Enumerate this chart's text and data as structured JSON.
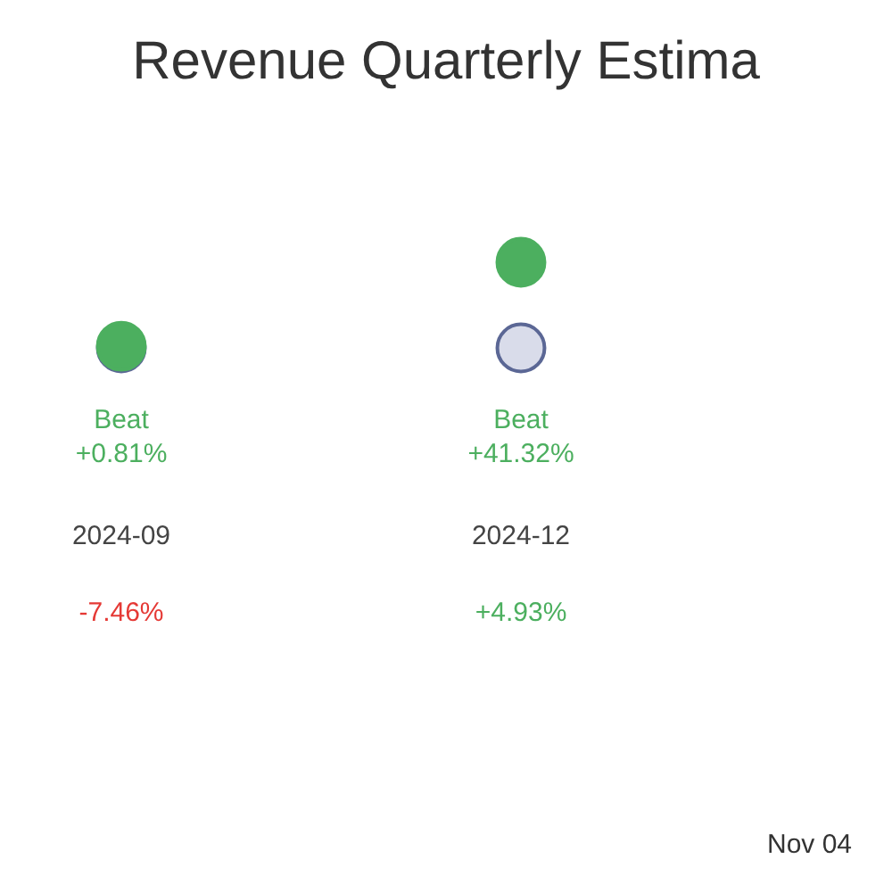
{
  "chart_data": {
    "type": "other",
    "title": "Revenue Quarterly Estima",
    "categories": [
      "2024-09",
      "2024-12"
    ],
    "series": [
      {
        "color": "#4caf5f",
        "values": [
          0.81,
          41.32
        ],
        "value_labels": [
          "Beat\n+0.81%",
          "Beat\n+41.32%"
        ]
      },
      {
        "color": "#4caf5f",
        "values": [
          -7.46,
          4.93
        ],
        "value_labels": [
          "-7.46%",
          "+4.93%"
        ]
      }
    ],
    "annotations": [
      "Nov 04"
    ]
  }
}
